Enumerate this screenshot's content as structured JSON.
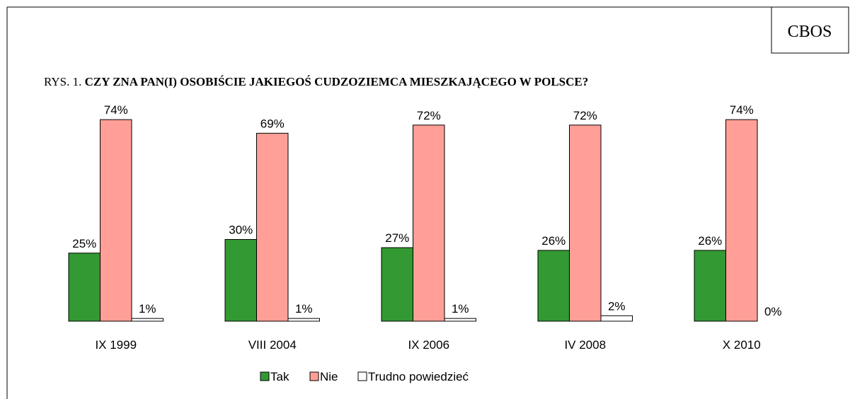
{
  "chart_data": {
    "type": "bar",
    "source": "CBOS",
    "figure_label": "RYS. 1.",
    "title": "CZY ZNA PAN(I) OSOBIŚCIE JAKIEGOŚ CUDZOZIEMCA MIESZKAJĄCEGO W POLSCE?",
    "categories": [
      "IX 1999",
      "VIII 2004",
      "IX 2006",
      "IV 2008",
      "X 2010"
    ],
    "series": [
      {
        "name": "Tak",
        "color": "#339933",
        "values": [
          25,
          30,
          27,
          26,
          26
        ],
        "value_labels": [
          "25%",
          "30%",
          "27%",
          "26%",
          "26%"
        ]
      },
      {
        "name": "Nie",
        "color": "#ff9f97",
        "values": [
          74,
          69,
          72,
          72,
          74
        ],
        "value_labels": [
          "74%",
          "69%",
          "72%",
          "72%",
          "74%"
        ]
      },
      {
        "name": "Trudno powiedzieć",
        "color": "#ffffff",
        "values": [
          1,
          1,
          1,
          2,
          0
        ],
        "value_labels": [
          "1%",
          "1%",
          "1%",
          "2%",
          "0%"
        ]
      }
    ],
    "legend": "bottom"
  }
}
